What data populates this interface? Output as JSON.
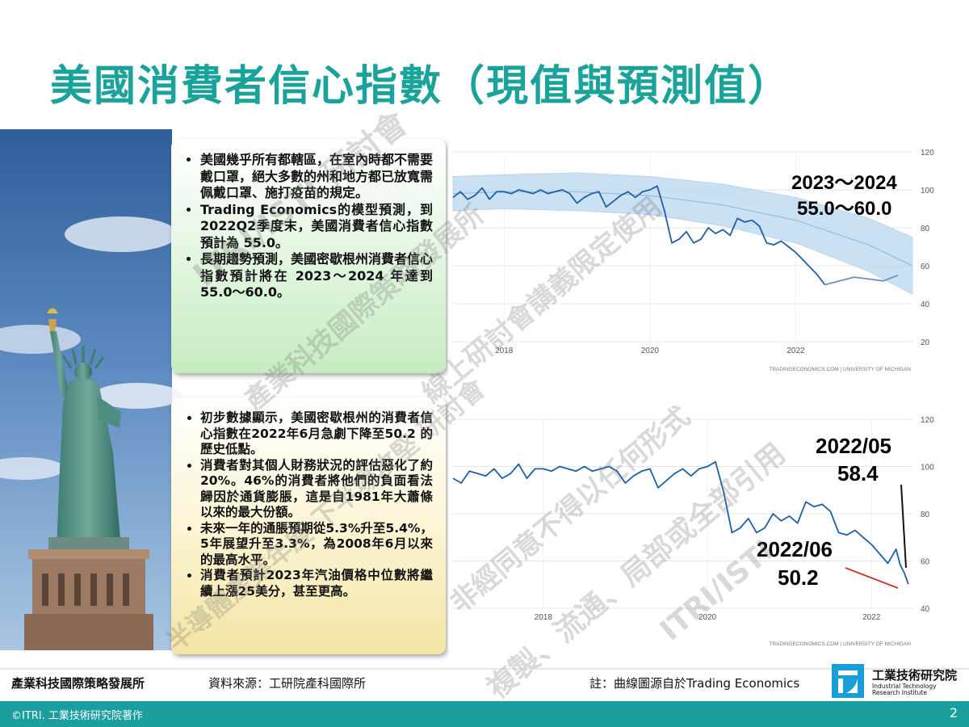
{
  "title": "美國消費者信心指數（現值與預測值）",
  "box1": {
    "bullets": [
      "美國幾乎所有都轄區，在室內時都不需要戴口罩，絕大多數的州和地方都已放寬需佩戴口罩、施打疫苗的規定。",
      "Trading Economics的模型預測，到2022Q2季度末，美國消費者信心指數預計為 55.0。",
      "長期趨勢預測，美國密歇根州消費者信心指數預計將在 2023～2024 年達到 55.0～60.0。"
    ]
  },
  "box2": {
    "bullets": [
      "初步數據顯示，美國密歇根州的消費者信心指數在2022年6月急劇下降至50.2 的歷史低點。",
      "消費者對其個人財務狀況的評估惡化了約20%。46%的消費者將他們的負面看法歸因於通貨膨脹，這是自1981年大蕭條以來的最大份額。",
      "未來一年的通脹預期從5.3%升至5.4%，5年展望升至3.3%，為2008年6月以來的最高水平。",
      "消費者預計2023年汽油價格中位數將繼續上漲25美分，甚至更高。"
    ]
  },
  "chart_data": [
    {
      "type": "line",
      "source_label": "TRADINGECONOMICS.COM | UNIVERSITY OF MICHIGAN",
      "x_ticks": [
        "2018",
        "2020",
        "2022"
      ],
      "y_ticks": [
        20,
        40,
        60,
        80,
        100,
        120
      ],
      "ylim": [
        20,
        120
      ],
      "xlim": [
        2017.3,
        2023.6
      ],
      "series": [
        {
          "role": "actual",
          "color": "#1f5fa8",
          "x": [
            2017.3,
            2017.4,
            2017.5,
            2017.6,
            2017.7,
            2017.8,
            2017.9,
            2018.0,
            2018.1,
            2018.2,
            2018.3,
            2018.4,
            2018.5,
            2018.6,
            2018.7,
            2018.8,
            2018.9,
            2019.0,
            2019.1,
            2019.2,
            2019.3,
            2019.4,
            2019.5,
            2019.6,
            2019.7,
            2019.8,
            2019.9,
            2020.0,
            2020.1,
            2020.2,
            2020.3,
            2020.4,
            2020.5,
            2020.6,
            2020.7,
            2020.8,
            2020.9,
            2021.0,
            2021.1,
            2021.2,
            2021.3,
            2021.4,
            2021.5,
            2021.6,
            2021.7,
            2021.8,
            2021.9,
            2022.0,
            2022.1,
            2022.2,
            2022.3,
            2022.4
          ],
          "values": [
            96,
            99,
            95,
            97,
            101,
            95,
            99,
            99,
            98,
            100,
            99,
            98,
            100,
            98,
            99,
            100,
            98,
            93,
            96,
            98,
            99,
            91,
            94,
            97,
            99,
            96,
            99,
            100,
            102,
            89,
            72,
            74,
            78,
            72,
            74,
            80,
            77,
            79,
            76,
            85,
            83,
            84,
            81,
            72,
            71,
            73,
            70,
            67,
            63,
            59,
            55,
            50
          ]
        },
        {
          "role": "forecast",
          "color": "#6a8fc4",
          "x": [
            2022.4,
            2022.6,
            2022.8,
            2023.0,
            2023.2,
            2023.4
          ],
          "values": [
            50,
            52,
            54,
            53,
            52,
            55
          ]
        }
      ],
      "forecast_band": {
        "x": [
          2017.3,
          2018.0,
          2019.0,
          2020.0,
          2021.0,
          2022.0,
          2023.0,
          2023.6
        ],
        "upper": [
          107,
          108,
          109,
          107,
          103,
          96,
          85,
          75
        ],
        "center": [
          98,
          99,
          99,
          97,
          92,
          84,
          71,
          60
        ],
        "lower": [
          89,
          90,
          89,
          87,
          81,
          72,
          57,
          45
        ]
      },
      "annotations": [
        {
          "text": "2023～2024",
          "color": "#e3231f"
        },
        {
          "text": "55.0～60.0",
          "color": "#e3231f"
        }
      ]
    },
    {
      "type": "line",
      "source_label": "TRADINGECONOMICS.COM | UNIVERSITY OF MICHIGAN",
      "x_ticks": [
        "2018",
        "2020",
        "2022"
      ],
      "y_ticks": [
        40,
        60,
        80,
        100,
        120
      ],
      "ylim": [
        40,
        120
      ],
      "xlim": [
        2016.9,
        2022.5
      ],
      "series": [
        {
          "role": "actual",
          "color": "#1f5fa8",
          "x": [
            2016.9,
            2017.0,
            2017.1,
            2017.2,
            2017.3,
            2017.4,
            2017.5,
            2017.6,
            2017.7,
            2017.8,
            2017.9,
            2018.0,
            2018.1,
            2018.2,
            2018.3,
            2018.4,
            2018.5,
            2018.6,
            2018.7,
            2018.8,
            2018.9,
            2019.0,
            2019.1,
            2019.2,
            2019.3,
            2019.4,
            2019.5,
            2019.6,
            2019.7,
            2019.8,
            2019.9,
            2020.0,
            2020.1,
            2020.2,
            2020.3,
            2020.4,
            2020.5,
            2020.6,
            2020.7,
            2020.8,
            2020.9,
            2021.0,
            2021.1,
            2021.2,
            2021.3,
            2021.4,
            2021.5,
            2021.6,
            2021.7,
            2021.8,
            2021.9,
            2022.0,
            2022.1,
            2022.2,
            2022.3,
            2022.35,
            2022.4,
            2022.45
          ],
          "values": [
            95,
            93,
            98,
            97,
            96,
            99,
            95,
            97,
            101,
            95,
            99,
            99,
            98,
            100,
            99,
            98,
            100,
            98,
            99,
            100,
            98,
            93,
            96,
            98,
            99,
            91,
            94,
            97,
            99,
            96,
            99,
            100,
            102,
            89,
            72,
            74,
            78,
            72,
            74,
            80,
            77,
            79,
            76,
            85,
            83,
            84,
            81,
            72,
            71,
            73,
            70,
            67,
            63,
            59,
            65,
            58.4,
            55,
            50.2
          ]
        }
      ],
      "annotations": [
        {
          "text": "2022/05",
          "color": "#111111"
        },
        {
          "text": "58.4",
          "color": "#111111"
        },
        {
          "text": "2022/06",
          "color": "#e3231f"
        },
        {
          "text": "50.2",
          "color": "#e3231f"
        }
      ]
    }
  ],
  "watermarks": [
    "ITRI/ISTI 研討會",
    "產業科技國際策略發展所",
    "半導體產業年度 下半場攻堅 研討會",
    "產業科技國際策略發展所 下半年精彩，下半場攻堅 研討會",
    "線上研討會講義限定使用",
    "非經同意不得以任何形式",
    "複製、流通、局部或全部引用",
    "ITRI/ISTI"
  ],
  "footer": {
    "org": "產業科技國際策略發展所",
    "source": "資料來源：工研院產科國際所",
    "note": "註：曲線圖源自於Trading Economics",
    "logo_zh": "工業技術研究院",
    "logo_en1": "Industrial Technology",
    "logo_en2": "Research Institute",
    "copyright": "©ITRI. 工業技術研究院著作",
    "page": "2"
  },
  "colors": {
    "title": "#1aa39a",
    "accent_red": "#e3231f",
    "line": "#1f5fa8",
    "band": "#b9d6f0",
    "footer_bar": "#1a9e9e"
  }
}
